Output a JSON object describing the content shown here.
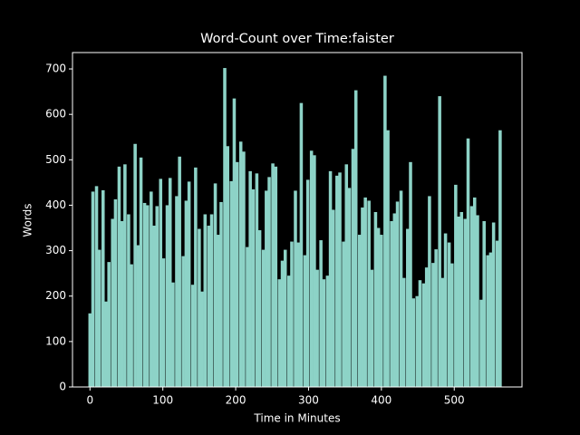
{
  "chart_data": {
    "type": "bar",
    "title": "Word-Count over Time:faister",
    "xlabel": "Time in Minutes",
    "ylabel": "Words",
    "color": "#8dd3c7",
    "x": [
      0,
      4,
      9,
      13,
      18,
      22,
      26,
      31,
      35,
      40,
      44,
      48,
      53,
      57,
      62,
      66,
      70,
      75,
      79,
      84,
      88,
      92,
      97,
      101,
      106,
      110,
      114,
      119,
      123,
      128,
      132,
      136,
      141,
      145,
      150,
      154,
      158,
      163,
      167,
      172,
      176,
      180,
      185,
      189,
      194,
      198,
      202,
      207,
      211,
      216,
      220,
      224,
      229,
      233,
      238,
      242,
      246,
      251,
      255,
      260,
      264,
      268,
      273,
      277,
      282,
      286,
      290,
      295,
      299,
      304,
      308,
      312,
      317,
      321,
      326,
      330,
      334,
      339,
      343,
      348,
      352,
      356,
      361,
      365,
      370,
      374,
      378,
      383,
      387,
      392,
      396,
      400,
      405,
      409,
      414,
      418,
      422,
      427,
      431,
      436,
      440,
      444,
      449,
      453,
      458,
      462,
      466,
      471,
      475,
      480,
      484,
      488,
      493,
      497,
      502,
      506,
      510,
      515,
      519,
      524,
      528,
      532,
      537,
      541,
      546,
      550,
      554,
      559,
      563
    ],
    "values": [
      162,
      430,
      442,
      302,
      433,
      188,
      275,
      370,
      413,
      485,
      365,
      490,
      380,
      270,
      535,
      312,
      505,
      405,
      400,
      430,
      355,
      398,
      458,
      283,
      400,
      460,
      230,
      420,
      507,
      288,
      410,
      452,
      225,
      483,
      348,
      210,
      380,
      355,
      380,
      448,
      335,
      407,
      702,
      530,
      453,
      635,
      495,
      540,
      518,
      308,
      475,
      435,
      470,
      345,
      302,
      432,
      462,
      492,
      485,
      237,
      278,
      302,
      245,
      320,
      432,
      318,
      625,
      290,
      456,
      520,
      510,
      258,
      323,
      237,
      245,
      475,
      390,
      465,
      472,
      320,
      490,
      438,
      524,
      653,
      335,
      395,
      417,
      410,
      258,
      385,
      350,
      335,
      685,
      565,
      365,
      382,
      408,
      432,
      240,
      348,
      495,
      195,
      200,
      235,
      228,
      263,
      420,
      273,
      303,
      640,
      240,
      338,
      318,
      272,
      445,
      375,
      385,
      370,
      547,
      398,
      417,
      378,
      192,
      365,
      290,
      296,
      362,
      322,
      565
    ],
    "xlim": [
      -24,
      593
    ],
    "ylim": [
      0,
      736
    ],
    "xticks": [
      0,
      100,
      200,
      300,
      400,
      500
    ],
    "yticks": [
      0,
      100,
      200,
      300,
      400,
      500,
      600,
      700
    ]
  }
}
